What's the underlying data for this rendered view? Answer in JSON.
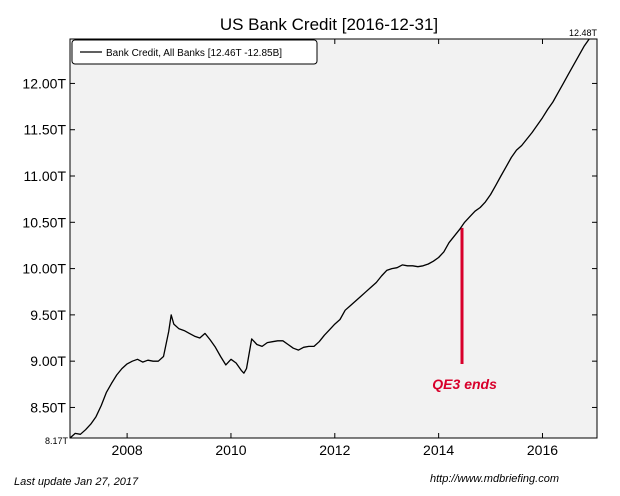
{
  "chart_data": {
    "type": "line",
    "title": "US Bank Credit  [2016-12-31]",
    "xlabel": "",
    "ylabel": "",
    "xlim": [
      2006.9,
      2017.05
    ],
    "ylim": [
      8.17,
      12.48
    ],
    "x_ticks": [
      2008,
      2010,
      2012,
      2014,
      2016
    ],
    "x_tick_labels": [
      "2008",
      "2010",
      "2012",
      "2014",
      "2016"
    ],
    "y_ticks": [
      8.5,
      9.0,
      9.5,
      10.0,
      10.5,
      11.0,
      11.5,
      12.0
    ],
    "y_tick_labels": [
      "8.50T",
      "9.00T",
      "9.50T",
      "10.00T",
      "10.50T",
      "11.00T",
      "11.50T",
      "12.00T"
    ],
    "y_min_label": "8.17T",
    "y_max_label": "12.48T",
    "grid": false,
    "legend_position": "top-left",
    "series": [
      {
        "name": "Bank Credit, All Banks [12.46T -12.85B]",
        "color": "#000000",
        "x": [
          2006.9,
          2007.0,
          2007.1,
          2007.2,
          2007.3,
          2007.4,
          2007.5,
          2007.6,
          2007.7,
          2007.8,
          2007.9,
          2008.0,
          2008.1,
          2008.2,
          2008.3,
          2008.4,
          2008.5,
          2008.6,
          2008.7,
          2008.8,
          2008.85,
          2008.9,
          2009.0,
          2009.1,
          2009.2,
          2009.3,
          2009.4,
          2009.5,
          2009.6,
          2009.7,
          2009.8,
          2009.9,
          2010.0,
          2010.1,
          2010.2,
          2010.25,
          2010.3,
          2010.4,
          2010.5,
          2010.6,
          2010.7,
          2010.8,
          2010.9,
          2011.0,
          2011.1,
          2011.2,
          2011.3,
          2011.4,
          2011.5,
          2011.6,
          2011.7,
          2011.8,
          2011.9,
          2012.0,
          2012.1,
          2012.2,
          2012.3,
          2012.4,
          2012.5,
          2012.6,
          2012.7,
          2012.8,
          2012.9,
          2013.0,
          2013.1,
          2013.2,
          2013.3,
          2013.4,
          2013.5,
          2013.6,
          2013.7,
          2013.8,
          2013.9,
          2014.0,
          2014.1,
          2014.2,
          2014.3,
          2014.4,
          2014.5,
          2014.6,
          2014.7,
          2014.8,
          2014.9,
          2015.0,
          2015.1,
          2015.2,
          2015.3,
          2015.4,
          2015.5,
          2015.6,
          2015.7,
          2015.8,
          2015.9,
          2016.0,
          2016.1,
          2016.2,
          2016.3,
          2016.4,
          2016.5,
          2016.6,
          2016.7,
          2016.8,
          2016.9
        ],
        "y": [
          8.17,
          8.22,
          8.21,
          8.26,
          8.32,
          8.4,
          8.52,
          8.66,
          8.76,
          8.85,
          8.92,
          8.97,
          9.0,
          9.02,
          8.99,
          9.01,
          9.0,
          9.0,
          9.05,
          9.32,
          9.5,
          9.4,
          9.35,
          9.33,
          9.3,
          9.27,
          9.25,
          9.3,
          9.23,
          9.15,
          9.05,
          8.96,
          9.02,
          8.98,
          8.9,
          8.87,
          8.92,
          9.24,
          9.18,
          9.16,
          9.2,
          9.21,
          9.22,
          9.22,
          9.18,
          9.14,
          9.12,
          9.15,
          9.16,
          9.16,
          9.21,
          9.28,
          9.34,
          9.4,
          9.45,
          9.55,
          9.6,
          9.65,
          9.7,
          9.75,
          9.8,
          9.85,
          9.92,
          9.98,
          10.0,
          10.01,
          10.04,
          10.03,
          10.03,
          10.02,
          10.03,
          10.05,
          10.08,
          10.12,
          10.18,
          10.28,
          10.35,
          10.42,
          10.5,
          10.56,
          10.62,
          10.66,
          10.72,
          10.8,
          10.9,
          11.0,
          11.1,
          11.2,
          11.28,
          11.33,
          11.4,
          11.47,
          11.55,
          11.63,
          11.72,
          11.8,
          11.9,
          12.0,
          12.1,
          12.2,
          12.3,
          12.4,
          12.48
        ]
      }
    ],
    "annotations": [
      {
        "text": "QE3 ends",
        "color": "#d8002b",
        "x": 2014.45,
        "y_from": 8.97,
        "y_to": 10.44,
        "label_x": 2014.5,
        "label_y": 8.7
      }
    ]
  },
  "footer": {
    "last_update": "Last update Jan 27, 2017",
    "source_url": "http://www.mdbriefing.com"
  }
}
